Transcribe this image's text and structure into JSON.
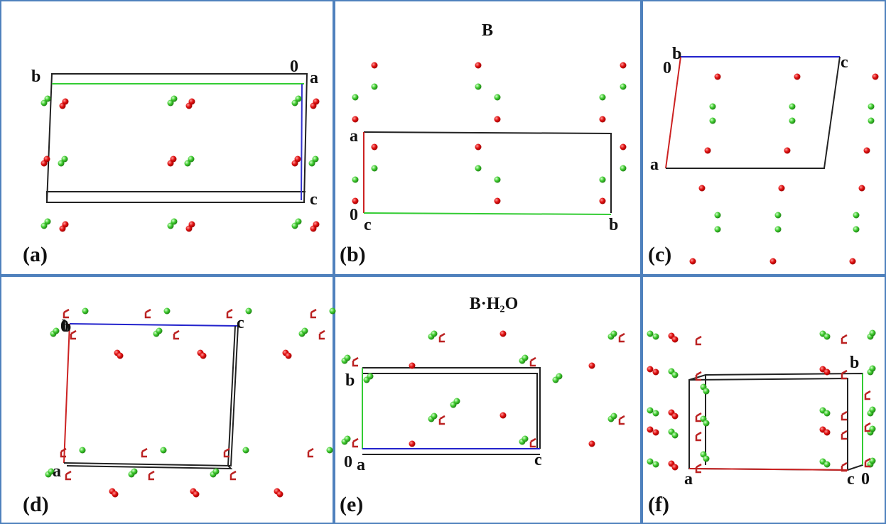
{
  "panels": [
    {
      "label": "(a)",
      "axes": [
        "b",
        "0",
        "a",
        "c"
      ]
    },
    {
      "label": "(b)",
      "title": "B",
      "axes": [
        "a",
        "0",
        "c",
        "b"
      ]
    },
    {
      "label": "(c)",
      "axes": [
        "b",
        "0",
        "c",
        "a"
      ]
    },
    {
      "label": "(d)",
      "axes": [
        "0",
        "b",
        "c",
        "a"
      ]
    },
    {
      "label": "(e)",
      "title": "B·H₂O",
      "axes": [
        "b",
        "0",
        "a",
        "c"
      ]
    },
    {
      "label": "(f)",
      "axes": [
        "b",
        "a",
        "c",
        "0"
      ]
    }
  ]
}
